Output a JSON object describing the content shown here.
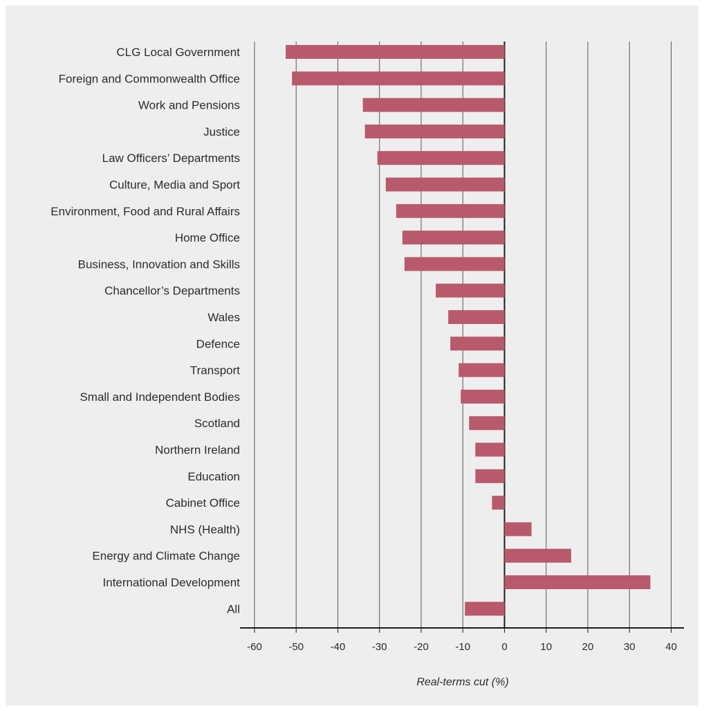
{
  "chart_data": {
    "type": "bar",
    "orientation": "horizontal",
    "categories": [
      "CLG Local Government",
      "Foreign and Commonwealth Office",
      "Work and Pensions",
      "Justice",
      "Law Officers’ Departments",
      "Culture, Media and Sport",
      "Environment, Food and Rural Affairs",
      "Home Office",
      "Business, Innovation and Skills",
      "Chancellor’s Departments",
      "Wales",
      "Defence",
      "Transport",
      "Small and Independent Bodies",
      "Scotland",
      "Northern Ireland",
      "Education",
      "Cabinet Office",
      "NHS (Health)",
      "Energy and Climate Change",
      "International Development",
      "All"
    ],
    "values": [
      -52.5,
      -51,
      -34,
      -33.5,
      -30.5,
      -28.5,
      -26,
      -24.5,
      -24,
      -16.5,
      -13.5,
      -13,
      -11,
      -10.5,
      -8.5,
      -7,
      -7,
      -3,
      6.5,
      16,
      35,
      -9.5
    ],
    "title": "",
    "xlabel": "Real-terms cut (%)",
    "ylabel": "",
    "xlim": [
      -60,
      40
    ],
    "ticks": [
      -60,
      -50,
      -40,
      -30,
      -20,
      -10,
      0,
      10,
      20,
      30,
      40
    ],
    "tick_labels": [
      "-60",
      "-50",
      "-40",
      "-30",
      "-20",
      "-10",
      "0",
      "10",
      "20",
      "30",
      "40"
    ],
    "grid": "vertical",
    "legend": "none",
    "bar_color": "#b85a6b",
    "background_color": "#efeeee"
  }
}
